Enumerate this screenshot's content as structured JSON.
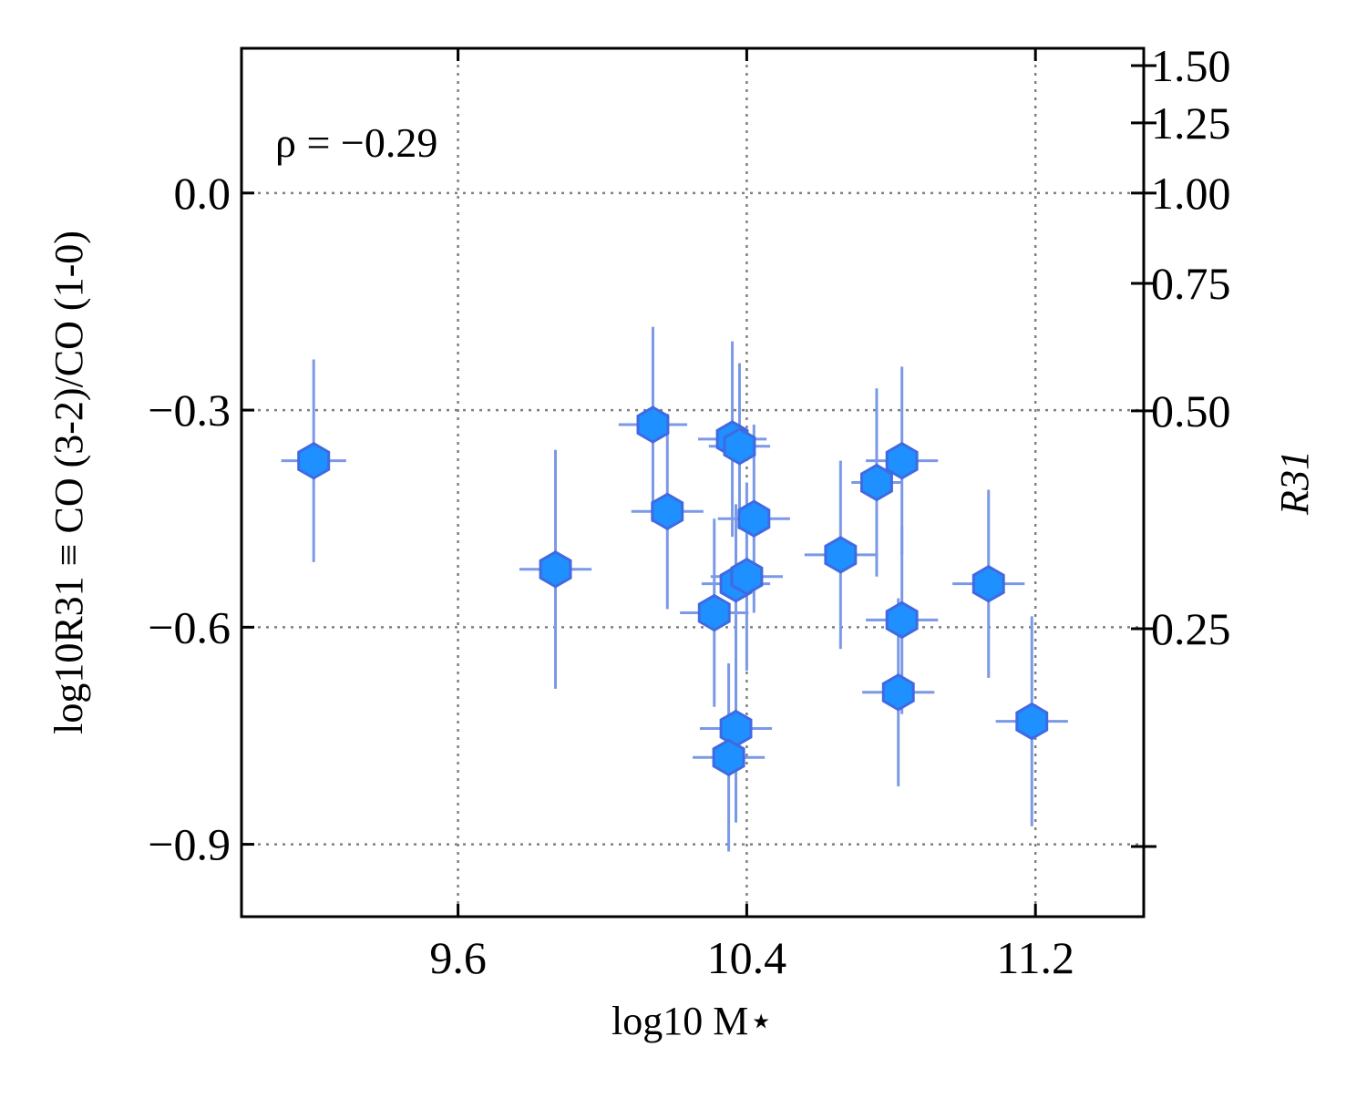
{
  "chart_data": {
    "type": "scatter",
    "xlabel": "log10 M⋆",
    "ylabel": "log10R31 ≡ CO (3-2)/CO (1-0)",
    "y2label": "R31",
    "annotation": "ρ = −0.29",
    "xlim": [
      9.0,
      11.5
    ],
    "ylim": [
      -1.0,
      0.2
    ],
    "xticks": [
      9.6,
      10.4,
      11.2
    ],
    "xtick_labels": [
      "9.6",
      "10.4",
      "11.2"
    ],
    "yticks": [
      0.0,
      -0.3,
      -0.6,
      -0.9
    ],
    "ytick_labels": [
      "0.0",
      "−0.3",
      "−0.6",
      "−0.9"
    ],
    "y2ticks": [
      1.5,
      1.25,
      1.0,
      0.75,
      0.5,
      0.25
    ],
    "y2tick_labels": [
      "1.50",
      "1.25",
      "1.00",
      "0.75",
      "0.50",
      "0.25"
    ],
    "y2_extra_ticks": [
      0.125
    ],
    "grid": true,
    "marker": "hexagon",
    "colors": {
      "marker": "#1e90ff",
      "marker_edge": "#4169e1",
      "errorbar": "#7a99e6"
    },
    "points": [
      {
        "x": 9.2,
        "y": -0.37,
        "xerr": 0.09,
        "yerr": 0.14
      },
      {
        "x": 9.87,
        "y": -0.52,
        "xerr": 0.1,
        "yerr": 0.165
      },
      {
        "x": 10.14,
        "y": -0.32,
        "xerr": 0.095,
        "yerr": 0.135
      },
      {
        "x": 10.18,
        "y": -0.44,
        "xerr": 0.1,
        "yerr": 0.135
      },
      {
        "x": 10.31,
        "y": -0.58,
        "xerr": 0.095,
        "yerr": 0.13
      },
      {
        "x": 10.36,
        "y": -0.34,
        "xerr": 0.095,
        "yerr": 0.135
      },
      {
        "x": 10.38,
        "y": -0.35,
        "xerr": 0.085,
        "yerr": 0.115
      },
      {
        "x": 10.37,
        "y": -0.54,
        "xerr": 0.095,
        "yerr": 0.11
      },
      {
        "x": 10.42,
        "y": -0.45,
        "xerr": 0.1,
        "yerr": 0.13
      },
      {
        "x": 10.4,
        "y": -0.53,
        "xerr": 0.1,
        "yerr": 0.13
      },
      {
        "x": 10.37,
        "y": -0.74,
        "xerr": 0.1,
        "yerr": 0.13
      },
      {
        "x": 10.35,
        "y": -0.78,
        "xerr": 0.1,
        "yerr": 0.13
      },
      {
        "x": 10.66,
        "y": -0.5,
        "xerr": 0.1,
        "yerr": 0.13
      },
      {
        "x": 10.76,
        "y": -0.4,
        "xerr": 0.07,
        "yerr": 0.13
      },
      {
        "x": 10.83,
        "y": -0.37,
        "xerr": 0.1,
        "yerr": 0.13
      },
      {
        "x": 10.83,
        "y": -0.59,
        "xerr": 0.1,
        "yerr": 0.13
      },
      {
        "x": 10.82,
        "y": -0.69,
        "xerr": 0.1,
        "yerr": 0.13
      },
      {
        "x": 11.07,
        "y": -0.54,
        "xerr": 0.1,
        "yerr": 0.13
      },
      {
        "x": 11.19,
        "y": -0.73,
        "xerr": 0.1,
        "yerr": 0.145
      }
    ]
  }
}
